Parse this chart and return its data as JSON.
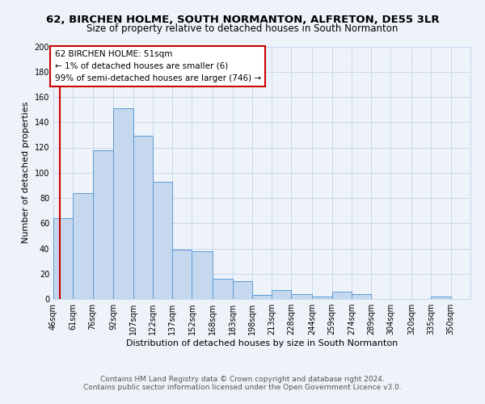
{
  "title1": "62, BIRCHEN HOLME, SOUTH NORMANTON, ALFRETON, DE55 3LR",
  "title2": "Size of property relative to detached houses in South Normanton",
  "xlabel": "Distribution of detached houses by size in South Normanton",
  "ylabel": "Number of detached properties",
  "footer1": "Contains HM Land Registry data © Crown copyright and database right 2024.",
  "footer2": "Contains public sector information licensed under the Open Government Licence v3.0.",
  "bin_labels": [
    "46sqm",
    "61sqm",
    "76sqm",
    "92sqm",
    "107sqm",
    "122sqm",
    "137sqm",
    "152sqm",
    "168sqm",
    "183sqm",
    "198sqm",
    "213sqm",
    "228sqm",
    "244sqm",
    "259sqm",
    "274sqm",
    "289sqm",
    "304sqm",
    "320sqm",
    "335sqm",
    "350sqm"
  ],
  "bin_edges": [
    46,
    61,
    76,
    92,
    107,
    122,
    137,
    152,
    168,
    183,
    198,
    213,
    228,
    244,
    259,
    274,
    289,
    304,
    320,
    335,
    350,
    365
  ],
  "bar_heights": [
    64,
    84,
    118,
    151,
    129,
    93,
    39,
    38,
    16,
    14,
    3,
    7,
    4,
    2,
    6,
    4,
    0,
    0,
    0,
    2,
    0
  ],
  "bar_color": "#c5d8ed",
  "bar_edge_color": "#5b9bd5",
  "property_line_x": 51,
  "annotation_title": "62 BIRCHEN HOLME: 51sqm",
  "annotation_line1": "← 1% of detached houses are smaller (6)",
  "annotation_line2": "99% of semi-detached houses are larger (746) →",
  "annotation_box_color": "#ffffff",
  "annotation_box_edge": "#cc0000",
  "property_line_color": "#cc0000",
  "grid_color": "#c8d8ec",
  "background_color": "#eef3fa",
  "ylim": [
    0,
    200
  ],
  "yticks": [
    0,
    20,
    40,
    60,
    80,
    100,
    120,
    140,
    160,
    180,
    200
  ],
  "title1_fontsize": 9.5,
  "title2_fontsize": 8.5,
  "xlabel_fontsize": 8,
  "ylabel_fontsize": 8,
  "tick_fontsize": 7,
  "footer_fontsize": 6.5
}
